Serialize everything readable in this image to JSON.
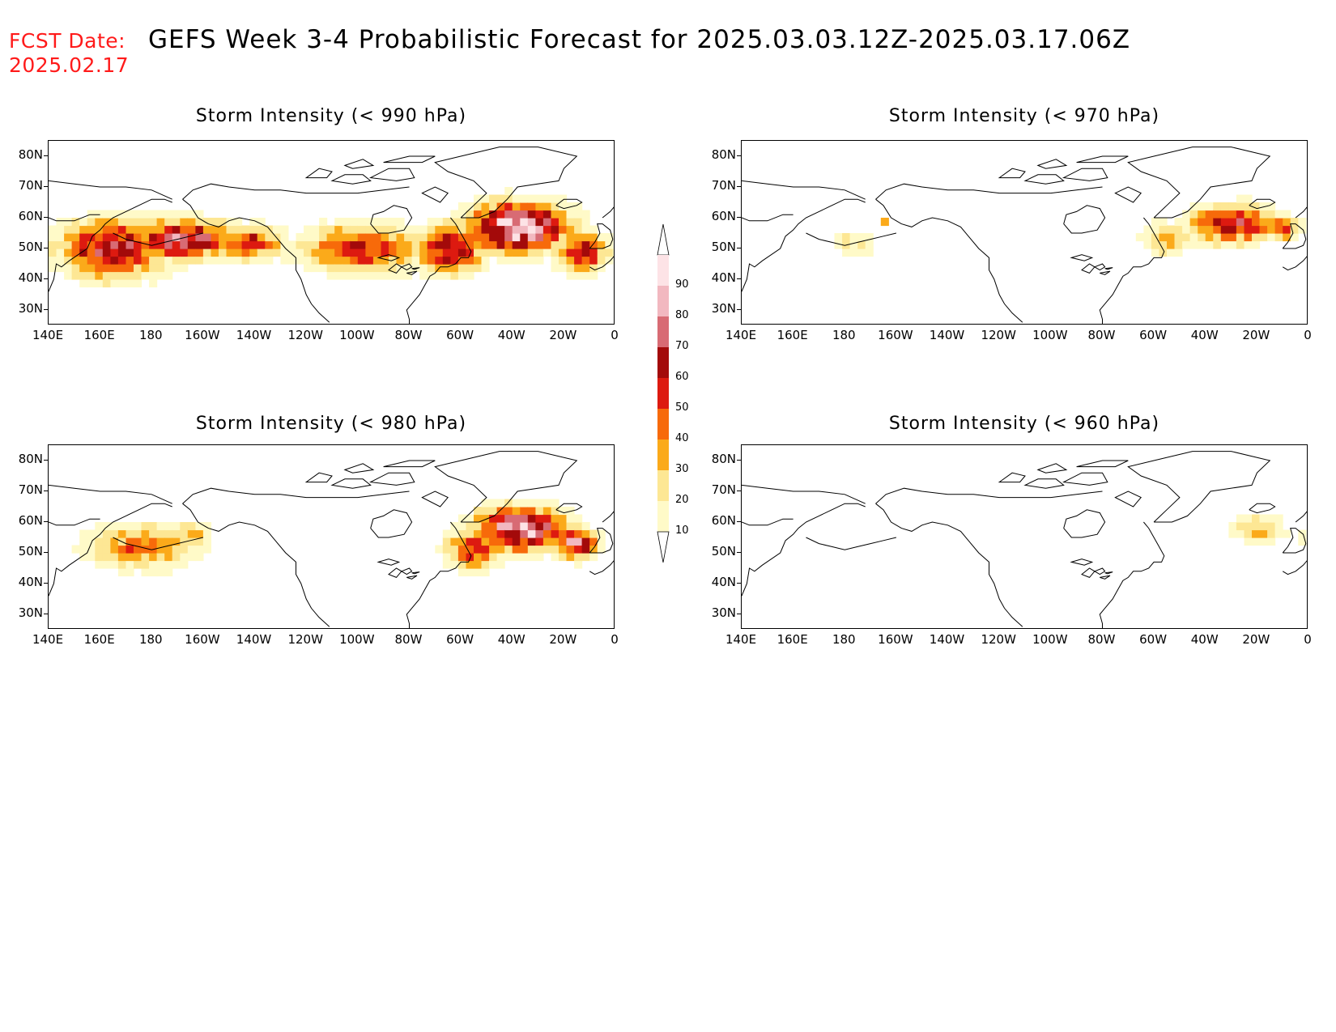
{
  "header": {
    "fcst_label": "FCST Date:",
    "fcst_date": "2025.02.17",
    "title": "GEFS Week 3-4 Probabilistic Forecast for 2025.03.03.12Z-2025.03.17.06Z"
  },
  "axes": {
    "lat_ticks": [
      "80N",
      "70N",
      "60N",
      "50N",
      "40N",
      "30N"
    ],
    "lon_ticks": [
      "140E",
      "160E",
      "180",
      "160W",
      "140W",
      "120W",
      "100W",
      "80W",
      "60W",
      "40W",
      "20W",
      "0"
    ]
  },
  "colors": {
    "levels": [
      "#fffac8",
      "#fde794",
      "#fbaa1a",
      "#f76a0a",
      "#dd1a10",
      "#a30a0a",
      "#d86b74",
      "#f2b8c0",
      "#fde3e6"
    ],
    "coast": "#000000"
  },
  "colorbar": {
    "ticks": [
      "10",
      "20",
      "30",
      "40",
      "50",
      "60",
      "70",
      "80",
      "90"
    ]
  },
  "panels": [
    {
      "id": "p990",
      "title": "Storm Intensity (< 990 hPa)"
    },
    {
      "id": "p970",
      "title": "Storm Intensity (< 970 hPa)"
    },
    {
      "id": "p980",
      "title": "Storm Intensity (< 980 hPa)"
    },
    {
      "id": "p960",
      "title": "Storm Intensity (< 960 hPa)"
    }
  ],
  "chart_data": {
    "type": "heatmap",
    "projection": "latitude-longitude",
    "lon_range": [
      140,
      360
    ],
    "lat_range": [
      25,
      85
    ],
    "units": "probability (%)",
    "levels": [
      10,
      20,
      30,
      40,
      50,
      60,
      70,
      80,
      90
    ],
    "fields": [
      {
        "panel": "p990",
        "blobs": [
          {
            "lon": 165,
            "lat": 50,
            "rlon": 26,
            "rlat": 12,
            "peak": 70
          },
          {
            "lon": 192,
            "lat": 53,
            "rlon": 24,
            "rlat": 8,
            "peak": 75
          },
          {
            "lon": 218,
            "lat": 52,
            "rlon": 16,
            "rlat": 7,
            "peak": 55
          },
          {
            "lon": 262,
            "lat": 50,
            "rlon": 30,
            "rlat": 10,
            "peak": 55
          },
          {
            "lon": 296,
            "lat": 50,
            "rlon": 16,
            "rlat": 10,
            "peak": 70
          },
          {
            "lon": 322,
            "lat": 57,
            "rlon": 24,
            "rlat": 10,
            "peak": 95
          },
          {
            "lon": 347,
            "lat": 49,
            "rlon": 12,
            "rlat": 8,
            "peak": 65
          }
        ]
      },
      {
        "panel": "p970",
        "blobs": [
          {
            "lon": 183,
            "lat": 52,
            "rlon": 12,
            "rlat": 6,
            "peak": 22
          },
          {
            "lon": 196,
            "lat": 59,
            "rlon": 2,
            "rlat": 2,
            "peak": 35
          },
          {
            "lon": 305,
            "lat": 53,
            "rlon": 12,
            "rlat": 7,
            "peak": 35
          },
          {
            "lon": 330,
            "lat": 58,
            "rlon": 22,
            "rlat": 8,
            "peak": 62
          },
          {
            "lon": 350,
            "lat": 57,
            "rlon": 8,
            "rlat": 5,
            "peak": 55
          }
        ]
      },
      {
        "panel": "p980",
        "blobs": [
          {
            "lon": 175,
            "lat": 52,
            "rlon": 26,
            "rlat": 9,
            "peak": 45
          },
          {
            "lon": 195,
            "lat": 56,
            "rlon": 8,
            "rlat": 5,
            "peak": 45
          },
          {
            "lon": 305,
            "lat": 51,
            "rlon": 14,
            "rlat": 8,
            "peak": 55
          },
          {
            "lon": 323,
            "lat": 58,
            "rlon": 22,
            "rlat": 9,
            "peak": 85
          },
          {
            "lon": 345,
            "lat": 53,
            "rlon": 10,
            "rlat": 6,
            "peak": 80
          }
        ]
      },
      {
        "panel": "p960",
        "blobs": [
          {
            "lon": 340,
            "lat": 58,
            "rlon": 14,
            "rlat": 6,
            "peak": 32
          },
          {
            "lon": 357,
            "lat": 55,
            "rlon": 3,
            "rlat": 3,
            "peak": 18
          }
        ]
      }
    ]
  }
}
